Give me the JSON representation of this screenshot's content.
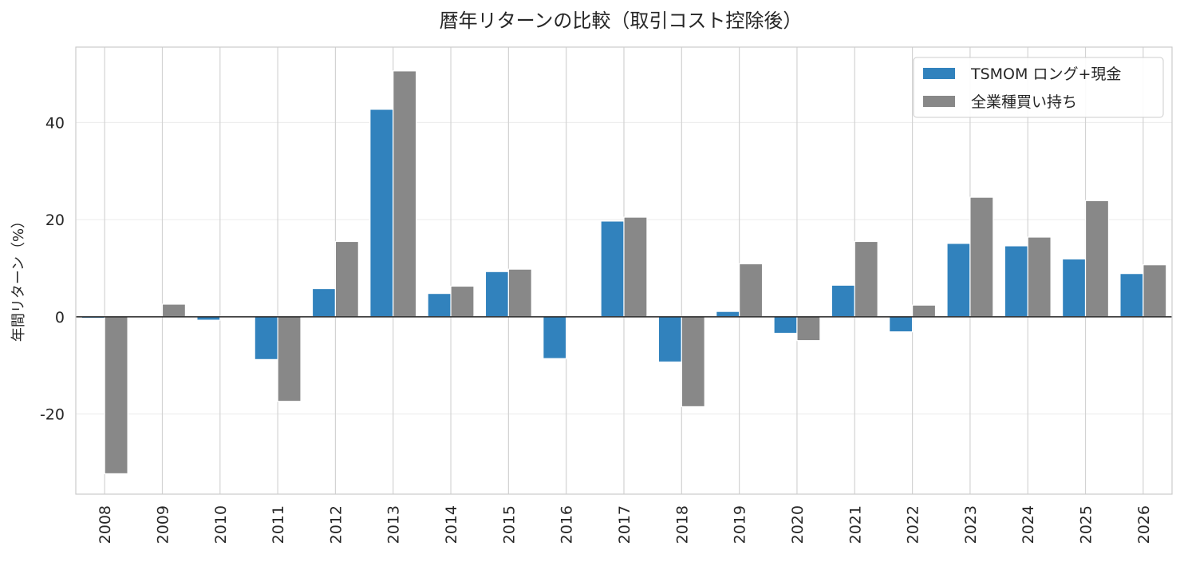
{
  "chart_data": {
    "type": "bar",
    "title": "暦年リターンの比較（取引コスト控除後）",
    "xlabel": "",
    "ylabel": "年間リターン（%）",
    "ylim": [
      -36.5,
      55.5
    ],
    "yticks": [
      -20,
      0,
      20,
      40
    ],
    "grid": true,
    "legend": "top-right",
    "categories": [
      "2008",
      "2009",
      "2010",
      "2011",
      "2012",
      "2013",
      "2014",
      "2015",
      "2016",
      "2017",
      "2018",
      "2019",
      "2020",
      "2021",
      "2022",
      "2023",
      "2024",
      "2025",
      "2026"
    ],
    "series": [
      {
        "name": "TSMOM ロング+現金",
        "color": "#3182bd",
        "values": [
          -0.3,
          0.0,
          -0.7,
          -8.8,
          5.8,
          42.7,
          4.8,
          9.3,
          -8.6,
          19.7,
          -9.3,
          1.1,
          -3.4,
          6.5,
          -3.1,
          15.1,
          14.6,
          11.9,
          8.9
        ]
      },
      {
        "name": "全業種買い持ち",
        "color": "#888888",
        "values": [
          -32.3,
          2.6,
          0.0,
          -17.4,
          15.5,
          50.6,
          6.3,
          9.8,
          0.0,
          20.5,
          -18.5,
          10.9,
          -4.9,
          15.5,
          2.4,
          24.6,
          16.4,
          23.9,
          10.7
        ]
      }
    ]
  }
}
